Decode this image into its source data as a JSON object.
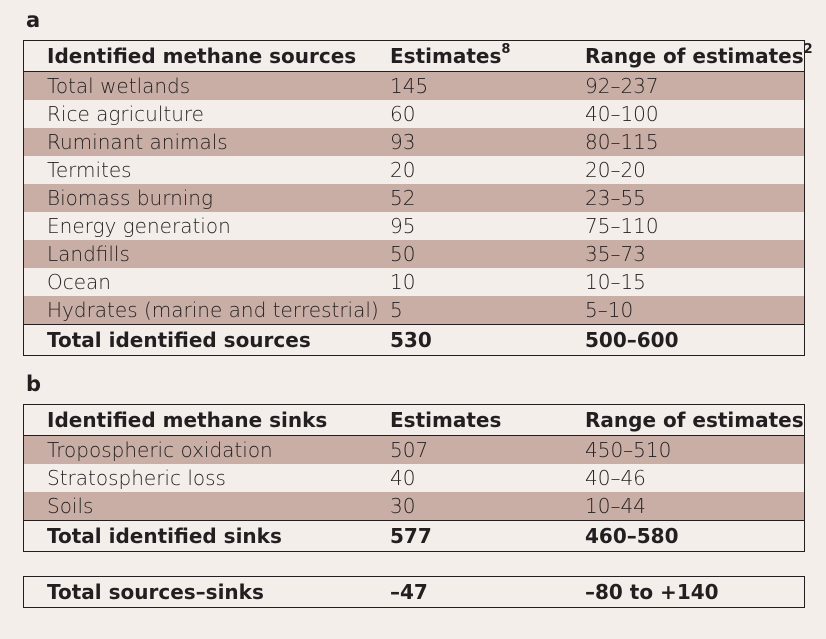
{
  "panel_a": {
    "label": "a",
    "headers": {
      "name": "Identified methane sources",
      "estimates": "Estimates",
      "estimates_ref": "8",
      "range": "Range of estimates",
      "range_ref": "2"
    },
    "rows": [
      {
        "name": "Total wetlands",
        "estimate": "145",
        "range": "92–237"
      },
      {
        "name": "Rice agriculture",
        "estimate": "60",
        "range": "40–100"
      },
      {
        "name": "Ruminant animals",
        "estimate": "93",
        "range": "80–115"
      },
      {
        "name": "Termites",
        "estimate": "20",
        "range": "20–20"
      },
      {
        "name": "Biomass burning",
        "estimate": "52",
        "range": "23–55"
      },
      {
        "name": "Energy generation",
        "estimate": "95",
        "range": "75–110"
      },
      {
        "name": "Landfills",
        "estimate": "50",
        "range": "35–73"
      },
      {
        "name": "Ocean",
        "estimate": "10",
        "range": "10–15"
      },
      {
        "name": "Hydrates (marine and terrestrial)",
        "estimate": "5",
        "range": "5–10"
      }
    ],
    "total": {
      "name": "Total identified sources",
      "estimate": "530",
      "range": "500–600"
    }
  },
  "panel_b": {
    "label": "b",
    "headers": {
      "name": "Identified methane sinks",
      "estimates": "Estimates",
      "range": "Range of estimates"
    },
    "rows": [
      {
        "name": "Tropospheric oxidation",
        "estimate": "507",
        "range": "450–510"
      },
      {
        "name": "Stratospheric loss",
        "estimate": "40",
        "range": "40–46"
      },
      {
        "name": "Soils",
        "estimate": "30",
        "range": "10–44"
      }
    ],
    "total": {
      "name": "Total identified sinks",
      "estimate": "577",
      "range": "460–580"
    }
  },
  "balance": {
    "name": "Total sources–sinks",
    "estimate": "–47",
    "range": "–80 to +140"
  },
  "colors": {
    "shade": "#c8aea4",
    "background": "#f4eeeb",
    "text": "#231f20"
  }
}
